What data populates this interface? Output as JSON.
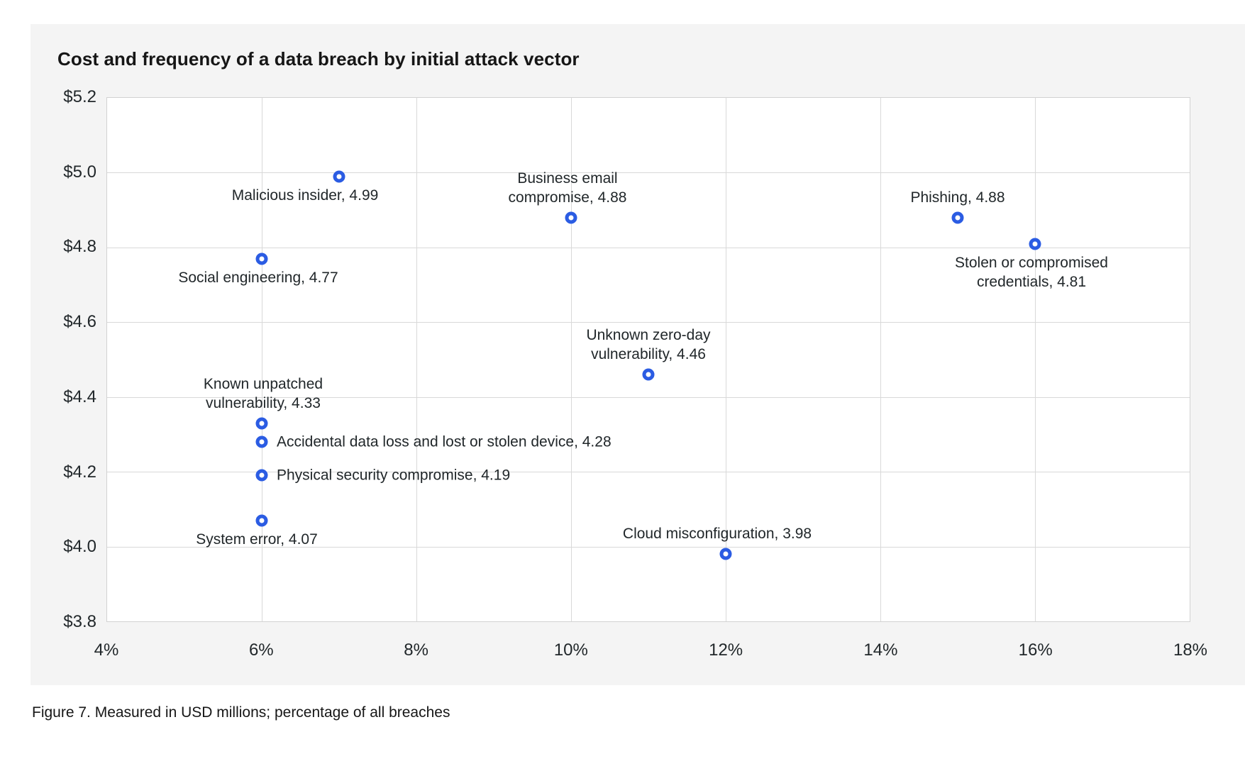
{
  "page": {
    "title": "Cost and frequency of a data breach by initial attack vector",
    "caption": "Figure 7. Measured in USD millions; percentage of all breaches"
  },
  "colors": {
    "card_background": "#f4f4f4",
    "plot_background": "#ffffff",
    "gridline": "#d9d9d9",
    "marker_blue": "#2b5ce3",
    "text": "#21272a"
  },
  "chart_data": {
    "type": "scatter",
    "title": "Cost and frequency of a data breach by initial attack vector",
    "xlabel": "",
    "ylabel": "",
    "units_note": "Measured in USD millions; percentage of all breaches",
    "xlim": [
      4,
      18
    ],
    "ylim": [
      3.8,
      5.2
    ],
    "x_ticks": [
      "4%",
      "6%",
      "8%",
      "10%",
      "12%",
      "14%",
      "16%",
      "18%"
    ],
    "y_ticks": [
      "$5.2",
      "$5.0",
      "$4.8",
      "$4.6",
      "$4.4",
      "$4.2",
      "$4.0",
      "$3.8"
    ],
    "grid": true,
    "legend": "none",
    "marker_style": "open-circle",
    "points": [
      {
        "label": "Malicious insider",
        "frequency_pct": 7,
        "cost_usd_millions": 4.99,
        "label_lines": [
          "Malicious insider, 4.99"
        ],
        "label_pos": "below",
        "label_dx": -48
      },
      {
        "label": "Business email compromise",
        "frequency_pct": 10,
        "cost_usd_millions": 4.88,
        "label_lines": [
          "Business email",
          "compromise, 4.88"
        ],
        "label_pos": "above",
        "label_dx": -5
      },
      {
        "label": "Phishing",
        "frequency_pct": 15,
        "cost_usd_millions": 4.88,
        "label_lines": [
          "Phishing, 4.88"
        ],
        "label_pos": "above",
        "label_dx": 0
      },
      {
        "label": "Stolen or compromised credentials",
        "frequency_pct": 16,
        "cost_usd_millions": 4.81,
        "label_lines": [
          "Stolen or compromised",
          "credentials, 4.81"
        ],
        "label_pos": "below",
        "label_dx": -5
      },
      {
        "label": "Social engineering",
        "frequency_pct": 6,
        "cost_usd_millions": 4.77,
        "label_lines": [
          "Social engineering, 4.77"
        ],
        "label_pos": "below",
        "label_dx": -5
      },
      {
        "label": "Unknown zero-day vulnerability",
        "frequency_pct": 11,
        "cost_usd_millions": 4.46,
        "label_lines": [
          "Unknown zero-day",
          "vulnerability, 4.46"
        ],
        "label_pos": "above",
        "label_dx": 0
      },
      {
        "label": "Known unpatched vulnerability",
        "frequency_pct": 6,
        "cost_usd_millions": 4.33,
        "label_lines": [
          "Known unpatched",
          "vulnerability, 4.33"
        ],
        "label_pos": "above",
        "label_dx": 2
      },
      {
        "label": "Accidental data loss and lost or stolen device",
        "frequency_pct": 6,
        "cost_usd_millions": 4.28,
        "label_lines": [
          "Accidental data loss and lost or stolen device, 4.28"
        ],
        "label_pos": "right",
        "label_dx": 0
      },
      {
        "label": "Physical security compromise",
        "frequency_pct": 6,
        "cost_usd_millions": 4.19,
        "label_lines": [
          "Physical security compromise, 4.19"
        ],
        "label_pos": "right",
        "label_dx": 0
      },
      {
        "label": "System error",
        "frequency_pct": 6,
        "cost_usd_millions": 4.07,
        "label_lines": [
          "System error, 4.07"
        ],
        "label_pos": "below",
        "label_dx": -7
      },
      {
        "label": "Cloud misconfiguration",
        "frequency_pct": 12,
        "cost_usd_millions": 3.98,
        "label_lines": [
          "Cloud misconfiguration, 3.98"
        ],
        "label_pos": "above",
        "label_dx": -12
      }
    ]
  }
}
